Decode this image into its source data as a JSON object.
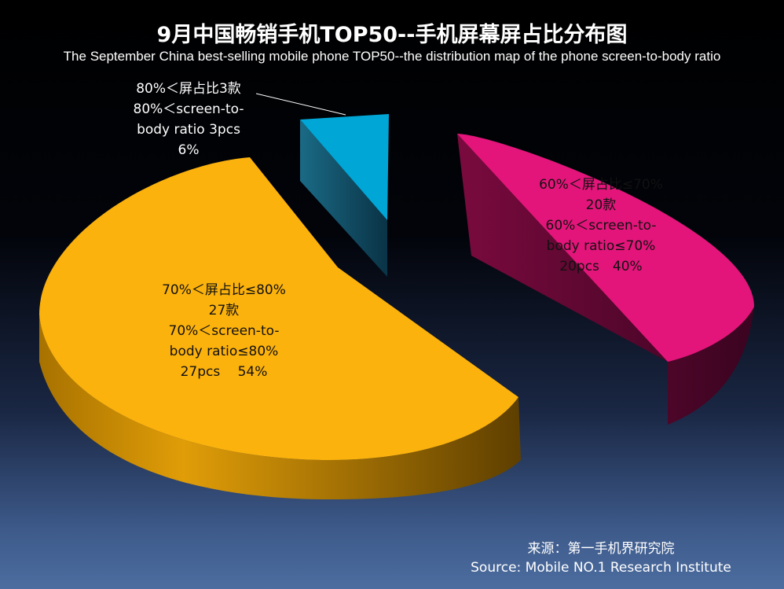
{
  "title": "9月中国畅销手机TOP50--手机屏幕屏占比分布图",
  "subtitle": "The September China best-selling mobile phone TOP50--the distribution map of the phone screen-to-body ratio",
  "source": {
    "cn": "来源：第一手机界研究院",
    "en": "Source: Mobile NO.1 Research Institute"
  },
  "chart_data": {
    "type": "pie",
    "style": "3d-exploded",
    "slices": [
      {
        "label_cn": "60%＜屏占比≤70%",
        "label_en": "60%＜screen-to-body ratio≤70%",
        "count": 20,
        "percent": 40,
        "color": "#e3157a",
        "lines": [
          "60%＜屏占比≤70%",
          "20款",
          "60%＜screen-to-",
          "body ratio≤70%",
          "20pcs　40%"
        ]
      },
      {
        "label_cn": "70%＜屏占比≤80%",
        "label_en": "70%＜screen-to-body ratio≤80%",
        "count": 27,
        "percent": 54,
        "color": "#fcb20d",
        "lines": [
          "70%＜屏占比≤80%",
          "27款",
          "70%＜screen-to-",
          "body ratio≤80%",
          "27pcs　  54%"
        ]
      },
      {
        "label_cn": "80%＜屏占比",
        "label_en": "80%＜screen-to-body ratio",
        "count": 3,
        "percent": 6,
        "color": "#00a6d6",
        "lines": [
          "80%＜屏占比3款",
          "80%＜screen-to-",
          "body ratio  3pcs",
          "6%"
        ]
      }
    ]
  }
}
